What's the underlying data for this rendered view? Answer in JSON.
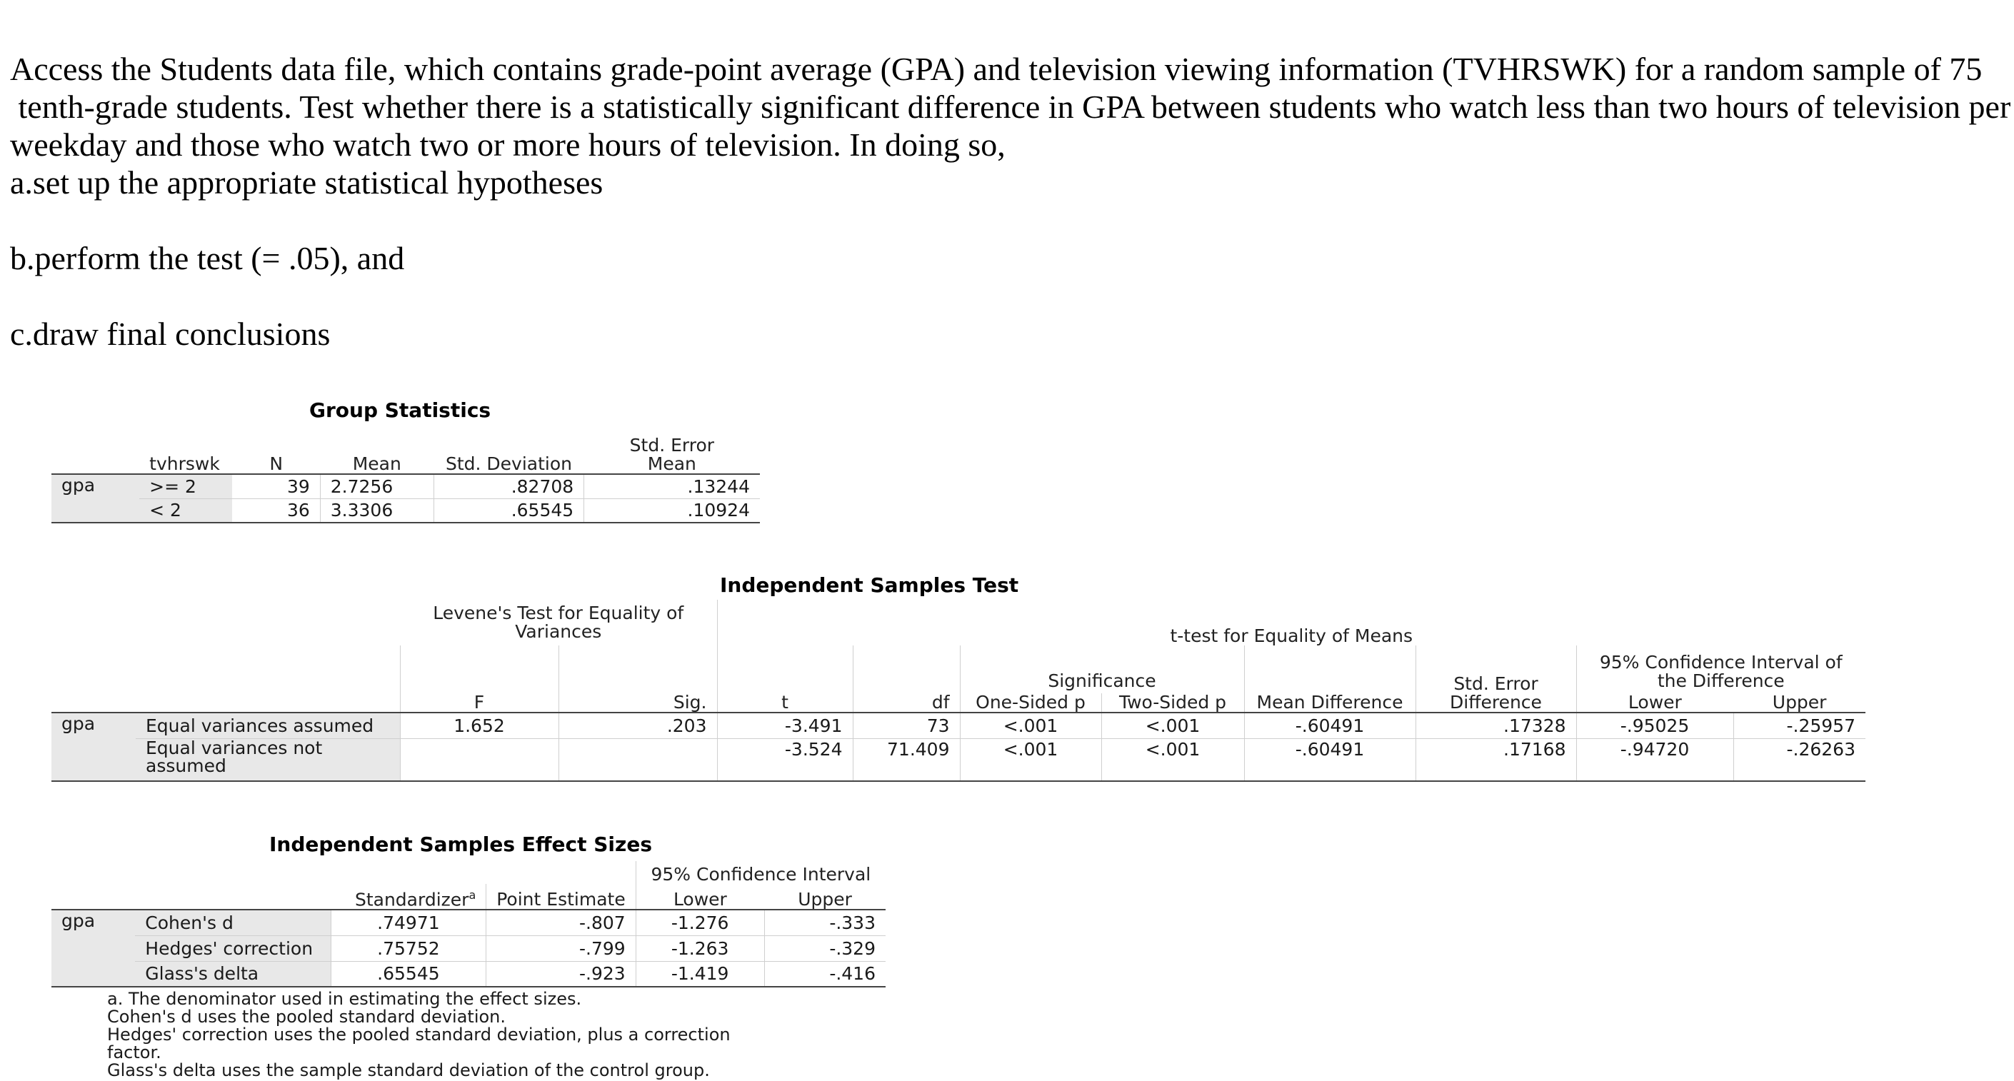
{
  "question": {
    "line1": "Access the Students data file, which contains grade-point average (GPA) and television viewing information (TVHRSWK) for a random sample of 75",
    "line2": " tenth-grade students. Test whether there is a statistically significant difference in GPA between students who watch less than two hours of television per",
    "line3": "weekday and those who watch two or more hours of television. In doing so,",
    "a": "a.set up the appropriate statistical hypotheses",
    "b": "b.perform the test (= .05), and",
    "c": "c.draw final conclusions"
  },
  "group_stats": {
    "title": "Group Statistics",
    "headers": [
      "tvhrswk",
      "N",
      "Mean",
      "Std. Deviation",
      "Std. Error Mean"
    ],
    "var": "gpa",
    "rows": [
      {
        "group": ">= 2",
        "n": "39",
        "mean": "2.7256",
        "sd": ".82708",
        "se": ".13244"
      },
      {
        "group": "< 2",
        "n": "36",
        "mean": "3.3306",
        "sd": ".65545",
        "se": ".10924"
      }
    ]
  },
  "ind_test": {
    "title": "Independent Samples Test",
    "levene_header": "Levene's Test for Equality of Variances",
    "ttest_header": "t-test for Equality of Means",
    "significance_header": "Significance",
    "ci_header": "95% Confidence Interval of the Difference",
    "headers": [
      "F",
      "Sig.",
      "t",
      "df",
      "One-Sided p",
      "Two-Sided p",
      "Mean Difference",
      "Std. Error Difference",
      "Lower",
      "Upper"
    ],
    "var": "gpa",
    "rows": [
      {
        "label": "Equal variances assumed",
        "f": "1.652",
        "sig": ".203",
        "t": "-3.491",
        "df": "73",
        "p1": "<.001",
        "p2": "<.001",
        "md": "-.60491",
        "sed": ".17328",
        "lower": "-.95025",
        "upper": "-.25957"
      },
      {
        "label": "Equal variances not assumed",
        "f": "",
        "sig": "",
        "t": "-3.524",
        "df": "71.409",
        "p1": "<.001",
        "p2": "<.001",
        "md": "-.60491",
        "sed": ".17168",
        "lower": "-.94720",
        "upper": "-.26263"
      }
    ]
  },
  "effect_sizes": {
    "title": "Independent Samples Effect Sizes",
    "ci_header": "95% Confidence Interval",
    "headers": [
      "Standardizer",
      "Point Estimate",
      "Lower",
      "Upper"
    ],
    "sup": "a",
    "var": "gpa",
    "rows": [
      {
        "label": "Cohen's d",
        "std": ".74971",
        "pe": "-.807",
        "lower": "-1.276",
        "upper": "-.333"
      },
      {
        "label": "Hedges' correction",
        "std": ".75752",
        "pe": "-.799",
        "lower": "-1.263",
        "upper": "-.329"
      },
      {
        "label": "Glass's delta",
        "std": ".65545",
        "pe": "-.923",
        "lower": "-1.419",
        "upper": "-.416"
      }
    ],
    "footnotes": [
      "a. The denominator used in estimating the effect sizes.",
      "Cohen's d uses the pooled standard deviation.",
      "Hedges' correction uses the pooled standard deviation, plus a correction",
      "factor.",
      "Glass's delta uses the sample standard deviation of the control group."
    ]
  }
}
